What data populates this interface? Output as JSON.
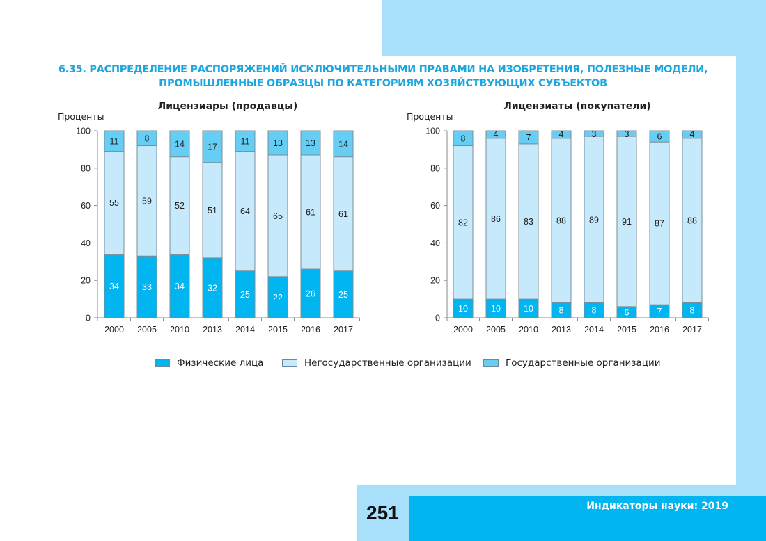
{
  "title_line1": "6.35. РАСПРЕДЕЛЕНИЕ РАСПОРЯЖЕНИЙ ИСКЛЮЧИТЕЛЬНЫМИ ПРАВАМИ НА ИЗОБРЕТЕНИЯ, ПОЛЕЗНЫЕ МОДЕЛИ,",
  "title_line2": "ПРОМЫШЛЕННЫЕ ОБРАЗЦЫ ПО КАТЕГОРИЯМ ХОЗЯЙСТВУЮЩИХ СУБЪЕКТОВ",
  "footer": {
    "page_number": "251",
    "publication": "Индикаторы науки: 2019"
  },
  "colors": {
    "individuals": "#00b5f0",
    "non_state": "#c6eafb",
    "state": "#66cdf5",
    "accent": "#1aa7e0"
  },
  "legend": [
    {
      "label": "Физические лица",
      "color": "#00b5f0"
    },
    {
      "label": "Негосударственные организации",
      "color": "#c6eafb"
    },
    {
      "label": "Государственные организации",
      "color": "#66cdf5"
    }
  ],
  "chart_data": [
    {
      "type": "bar",
      "stacked": true,
      "title": "Лицензиары (продавцы)",
      "ylabel": "Проценты",
      "xlabel": "",
      "ylim": [
        0,
        100
      ],
      "yticks": [
        0,
        20,
        40,
        60,
        80,
        100
      ],
      "categories": [
        "2000",
        "2005",
        "2010",
        "2013",
        "2014",
        "2015",
        "2016",
        "2017"
      ],
      "series": [
        {
          "name": "Физические лица",
          "values": [
            34,
            33,
            34,
            32,
            25,
            22,
            26,
            25
          ]
        },
        {
          "name": "Негосударственные организации",
          "values": [
            55,
            59,
            52,
            51,
            64,
            65,
            61,
            61
          ]
        },
        {
          "name": "Государственные организации",
          "values": [
            11,
            8,
            14,
            17,
            11,
            13,
            13,
            14
          ]
        }
      ],
      "grid": false
    },
    {
      "type": "bar",
      "stacked": true,
      "title": "Лицензиаты (покупатели)",
      "ylabel": "Проценты",
      "xlabel": "",
      "ylim": [
        0,
        100
      ],
      "yticks": [
        0,
        20,
        40,
        60,
        80,
        100
      ],
      "categories": [
        "2000",
        "2005",
        "2010",
        "2013",
        "2014",
        "2015",
        "2016",
        "2017"
      ],
      "series": [
        {
          "name": "Физические лица",
          "values": [
            10,
            10,
            10,
            8,
            8,
            6,
            7,
            8
          ]
        },
        {
          "name": "Негосударственные организации",
          "values": [
            82,
            86,
            83,
            88,
            89,
            91,
            87,
            88
          ]
        },
        {
          "name": "Государственные организации",
          "values": [
            8,
            4,
            7,
            4,
            3,
            3,
            6,
            4
          ]
        }
      ],
      "grid": false
    }
  ]
}
